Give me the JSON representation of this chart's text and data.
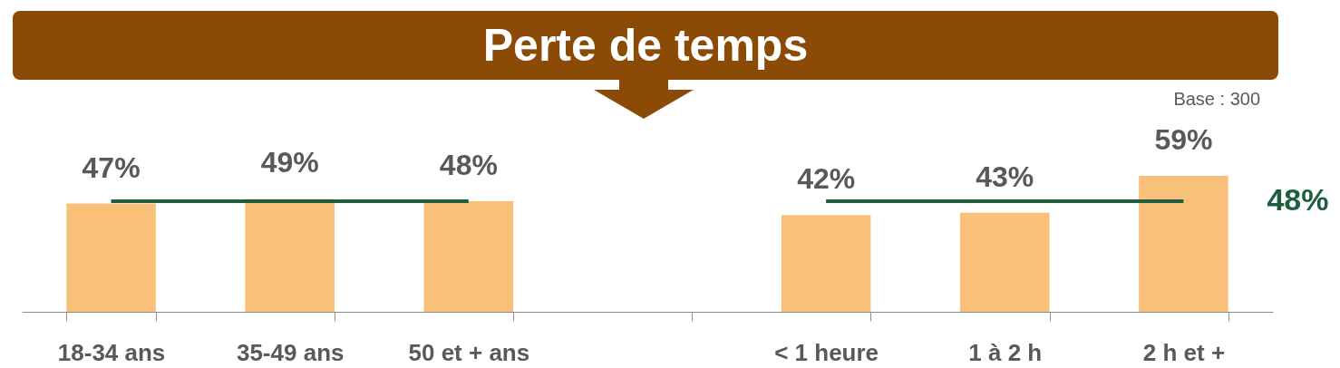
{
  "chart_data": {
    "type": "bar",
    "title": "Perte de temps",
    "categories": [
      "18-34 ans",
      "35-49 ans",
      "50 et + ans",
      null,
      "< 1 heure",
      "1 à 2 h",
      "2 h et +"
    ],
    "values": [
      47,
      49,
      48,
      null,
      42,
      43,
      59
    ],
    "value_labels": [
      "47%",
      "49%",
      "48%",
      null,
      "42%",
      "43%",
      "59%"
    ],
    "color": "#f9c07a",
    "ref_lines": [
      {
        "axis": "y",
        "value": 48,
        "label": "48%",
        "color": "#1e5e3c"
      }
    ],
    "annotations": [
      "Base : 300"
    ],
    "grid": false
  }
}
